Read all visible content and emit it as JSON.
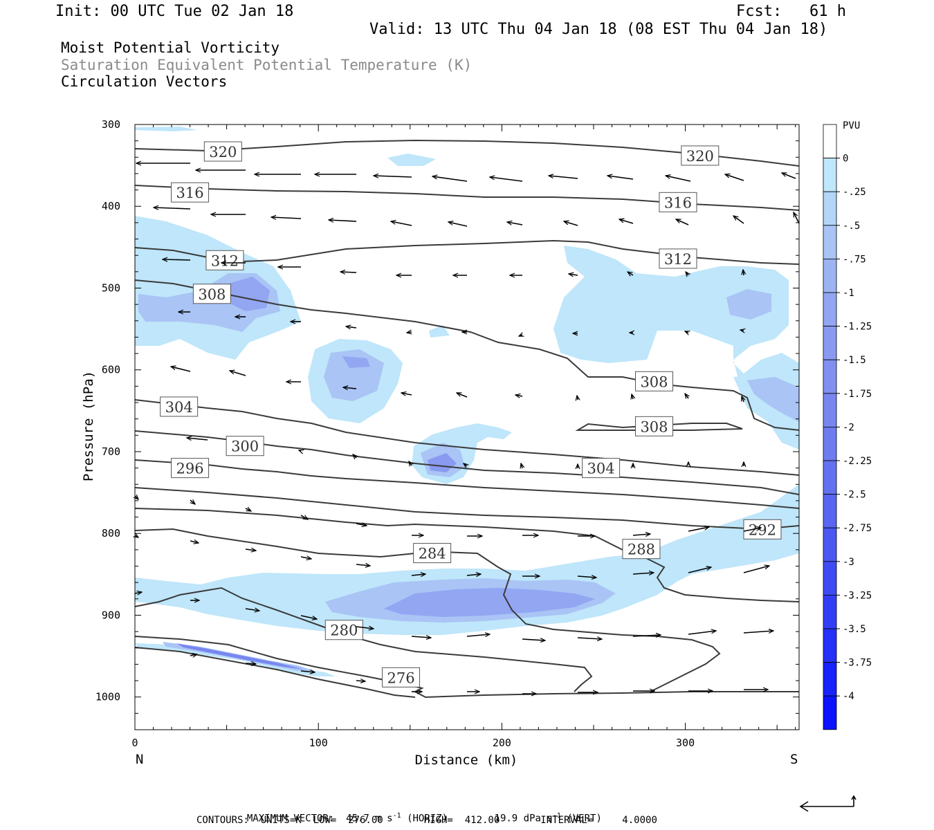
{
  "header": {
    "init": "Init: 00 UTC Tue 02 Jan 18",
    "fcst": "Fcst:   61 h",
    "valid": "Valid: 13 UTC Thu 04 Jan 18 (08 EST Thu 04 Jan 18)",
    "title1": "Moist Potential Vorticity",
    "title2": "Saturation Equivalent Potential Temperature (K)",
    "title3": "Circulation Vectors"
  },
  "colors": {
    "pv_fill_025": "#bfe6fa",
    "pv_fill_075": "#a9c4f5",
    "pv_fill_125": "#8aa2f2",
    "contour": "#3a3a3a"
  },
  "chart_data": {
    "type": "cross-section",
    "xlabel": "Distance (km)",
    "ylabel": "Pressure (hPa)",
    "xlim": [
      0,
      362
    ],
    "ylim": [
      300,
      1040
    ],
    "x_ticks": [
      0,
      100,
      200,
      300
    ],
    "y_ticks": [
      300,
      400,
      500,
      600,
      700,
      800,
      900,
      1000
    ],
    "x_end_labels": {
      "left": "N",
      "right": "S"
    },
    "colorbar": {
      "unit": "PVU",
      "ticks": [
        "0",
        "-.25",
        "-.5",
        "-.75",
        "-1",
        "-1.25",
        "-1.5",
        "-1.75",
        "-2",
        "-2.25",
        "-2.5",
        "-2.75",
        "-3",
        "-3.25",
        "-3.5",
        "-3.75",
        "-4"
      ],
      "colors": [
        "#ffffff",
        "#bfe6fa",
        "#b3d6f8",
        "#a9c4f5",
        "#9db4f3",
        "#92a6f2",
        "#8a9af1",
        "#8190f0",
        "#7886f0",
        "#6e7cf0",
        "#6372f0",
        "#5866f1",
        "#4b58f2",
        "#3f4bf4",
        "#323ef6",
        "#2530f8",
        "#1822fb",
        "#0b12fd"
      ]
    },
    "contour_labels": [
      {
        "text": "320",
        "x": 48,
        "p": 333
      },
      {
        "text": "320",
        "x": 308,
        "p": 338
      },
      {
        "text": "316",
        "x": 30,
        "p": 383
      },
      {
        "text": "316",
        "x": 296,
        "p": 395
      },
      {
        "text": "312",
        "x": 49,
        "p": 466
      },
      {
        "text": "312",
        "x": 296,
        "p": 464
      },
      {
        "text": "308",
        "x": 42,
        "p": 507
      },
      {
        "text": "308",
        "x": 283,
        "p": 614
      },
      {
        "text": "308",
        "x": 283,
        "p": 669
      },
      {
        "text": "304",
        "x": 24,
        "p": 645
      },
      {
        "text": "304",
        "x": 254,
        "p": 720
      },
      {
        "text": "300",
        "x": 60,
        "p": 693
      },
      {
        "text": "296",
        "x": 30,
        "p": 720
      },
      {
        "text": "292",
        "x": 342,
        "p": 795
      },
      {
        "text": "288",
        "x": 276,
        "p": 819
      },
      {
        "text": "284",
        "x": 162,
        "p": 824
      },
      {
        "text": "280",
        "x": 114,
        "p": 918
      },
      {
        "text": "276",
        "x": 145,
        "p": 976
      }
    ],
    "max_vector": "MAXIMUM VECTOR:  45.7 m s",
    "max_vector_horiz": "(HORIZ)",
    "max_vector_vert": "19.9 dPa s",
    "max_vector_vert_tag": "(VERT)",
    "superscript": "-1",
    "contours_line": "CONTOURS:  UNITS=K  LOW=  276.00       HIGH=  412.00       INTERVAL=     4.0000"
  }
}
